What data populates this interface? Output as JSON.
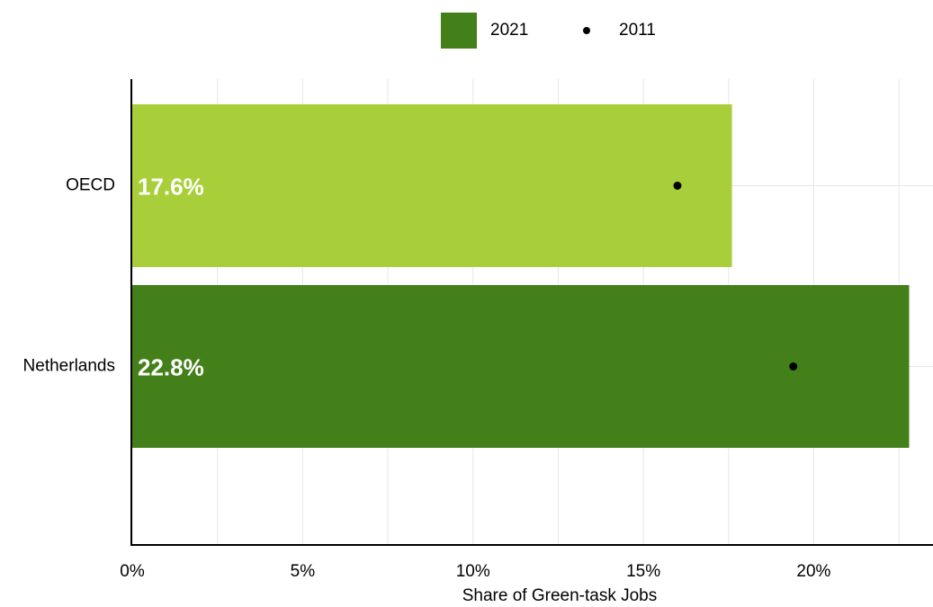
{
  "chart_data": {
    "type": "bar",
    "orientation": "horizontal",
    "categories": [
      "OECD",
      "Netherlands"
    ],
    "series": [
      {
        "name": "2021",
        "color": "#44801a",
        "colors": [
          "#a8cf3a",
          "#44801a"
        ],
        "values": [
          17.6,
          22.8
        ],
        "value_labels": [
          "17.6%",
          "22.8%"
        ]
      },
      {
        "name": "2011",
        "mark": "dot",
        "color": "#000000",
        "values": [
          16.0,
          19.4
        ]
      }
    ],
    "xlim": [
      0,
      23.5
    ],
    "xticks": [
      {
        "value": 0,
        "label": "0%"
      },
      {
        "value": 5,
        "label": "5%"
      },
      {
        "value": 10,
        "label": "10%"
      },
      {
        "value": 15,
        "label": "15%"
      },
      {
        "value": 20,
        "label": "20%"
      }
    ],
    "minor_xticks": [
      2.5,
      7.5,
      12.5,
      17.5,
      22.5
    ],
    "xlabel": "Share of Green-task Jobs",
    "grid": true,
    "legend": "top"
  }
}
